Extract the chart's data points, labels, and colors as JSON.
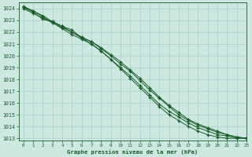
{
  "title": "Graphe pression niveau de la mer (hPa)",
  "bg_color": "#cce8e0",
  "grid_color": "#aacfc8",
  "line_color": "#1a5c2a",
  "xlim": [
    -0.5,
    23
  ],
  "ylim": [
    1012.8,
    1024.5
  ],
  "yticks": [
    1013,
    1014,
    1015,
    1016,
    1017,
    1018,
    1019,
    1020,
    1021,
    1022,
    1023,
    1024
  ],
  "xticks": [
    0,
    1,
    2,
    3,
    4,
    5,
    6,
    7,
    8,
    9,
    10,
    11,
    12,
    13,
    14,
    15,
    16,
    17,
    18,
    19,
    20,
    21,
    22,
    23
  ],
  "lines": [
    [
      1024.1,
      1023.7,
      1023.1,
      1022.9,
      1022.5,
      1022.2,
      1021.5,
      1021.2,
      1020.6,
      1020.0,
      1019.3,
      1018.7,
      1017.9,
      1017.1,
      1016.4,
      1015.7,
      1015.0,
      1014.5,
      1014.1,
      1013.8,
      1013.5,
      1013.3,
      1013.1,
      1013.0
    ],
    [
      1024.0,
      1023.6,
      1023.2,
      1022.8,
      1022.4,
      1022.0,
      1021.6,
      1021.2,
      1020.7,
      1020.1,
      1019.5,
      1018.8,
      1018.1,
      1017.3,
      1016.5,
      1015.8,
      1015.2,
      1014.6,
      1014.2,
      1013.9,
      1013.6,
      1013.3,
      1013.1,
      1013.0
    ],
    [
      1024.2,
      1023.8,
      1023.3,
      1022.8,
      1022.3,
      1021.8,
      1021.4,
      1021.0,
      1020.4,
      1019.7,
      1019.0,
      1018.3,
      1017.5,
      1016.7,
      1015.9,
      1015.3,
      1014.8,
      1014.3,
      1013.9,
      1013.6,
      1013.3,
      1013.2,
      1013.0,
      1013.0
    ],
    [
      1024.1,
      1023.8,
      1023.4,
      1022.9,
      1022.5,
      1022.0,
      1021.5,
      1021.0,
      1020.4,
      1019.7,
      1018.9,
      1018.1,
      1017.3,
      1016.5,
      1015.7,
      1015.0,
      1014.5,
      1014.0,
      1013.6,
      1013.3,
      1013.1,
      1013.0,
      1013.0,
      1013.0
    ]
  ]
}
